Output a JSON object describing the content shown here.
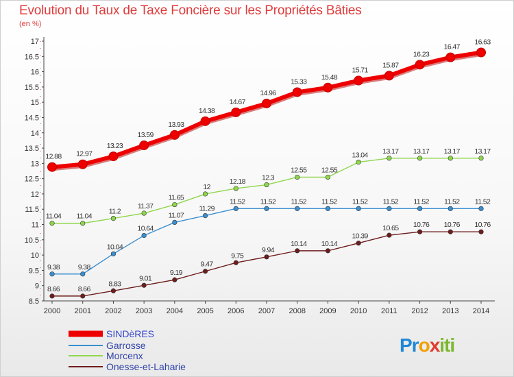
{
  "title": "Evolution du Taux de Taxe Foncière sur les Propriétés Bâties",
  "subtitle": "(en %)",
  "logo": {
    "text": "Proxiti",
    "colors": [
      "#1e88d6",
      "#f2a000",
      "#e23a2e",
      "#7cb82f"
    ]
  },
  "chart_data": {
    "type": "line",
    "title": "Evolution du Taux de Taxe Foncière sur les Propriétés Bâties",
    "ylabel": "(en %)",
    "xlabel": "",
    "ylim": [
      8.5,
      17
    ],
    "yticks": [
      "8.5",
      "9",
      "9.5",
      "10",
      "10.5",
      "11",
      "11.5",
      "12",
      "12.5",
      "13",
      "13.5",
      "14",
      "14.5",
      "15",
      "15.5",
      "16",
      "16.5",
      "17"
    ],
    "grid": false,
    "legend_position": "bottom-left",
    "x": [
      "2000",
      "2001",
      "2002",
      "2003",
      "2004",
      "2005",
      "2006",
      "2007",
      "2008",
      "2009",
      "2010",
      "2011",
      "2012",
      "2013",
      "2014"
    ],
    "series": [
      {
        "name": "SINDèRES",
        "color": "#ee0000",
        "values": [
          12.88,
          12.97,
          13.23,
          13.59,
          13.93,
          14.38,
          14.67,
          14.96,
          15.33,
          15.48,
          15.71,
          15.87,
          16.23,
          16.47,
          16.63
        ],
        "labels": [
          "12.88",
          "12.97",
          "13.23",
          "13.59",
          "13.93",
          "14.38",
          "14.67",
          "14.96",
          "15.33",
          "15.48",
          "15.71",
          "15.87",
          "16.23",
          "16.47",
          "16.63"
        ]
      },
      {
        "name": "Garrosse",
        "color": "#3a8fd0",
        "values": [
          9.38,
          9.38,
          10.04,
          10.64,
          11.07,
          11.29,
          11.52,
          11.52,
          11.52,
          11.52,
          11.52,
          11.52,
          11.52,
          11.52,
          11.52
        ],
        "labels": [
          "9.38",
          "9.38",
          "10.04",
          "10.64",
          "11.07",
          "11.29",
          "11.52",
          "11.52",
          "11.52",
          "11.52",
          "11.52",
          "11.52",
          "11.52",
          "11.52",
          "11.52"
        ]
      },
      {
        "name": "Morcenx",
        "color": "#8fd64c",
        "values": [
          11.04,
          11.04,
          11.2,
          11.37,
          11.65,
          12,
          12.18,
          12.3,
          12.55,
          12.55,
          13.04,
          13.17,
          13.17,
          13.17,
          13.17
        ],
        "labels": [
          "11.04",
          "11.04",
          "11.2",
          "11.37",
          "11.65",
          "12",
          "12.18",
          "12.3",
          "12.55",
          "12.55",
          "13.04",
          "13.17",
          "13.17",
          "13.17",
          "13.17"
        ]
      },
      {
        "name": "Onesse-et-Laharie",
        "color": "#6e1c1c",
        "values": [
          8.66,
          8.66,
          8.83,
          9.01,
          9.19,
          9.47,
          9.75,
          9.94,
          10.14,
          10.14,
          10.39,
          10.65,
          10.76,
          10.76,
          10.76
        ],
        "labels": [
          "8.66",
          "8.66",
          "8.83",
          "9.01",
          "9.19",
          "9.47",
          "9.75",
          "9.94",
          "10.14",
          "10.14",
          "10.39",
          "10.65",
          "10.76",
          "10.76",
          "10.76"
        ]
      }
    ]
  }
}
